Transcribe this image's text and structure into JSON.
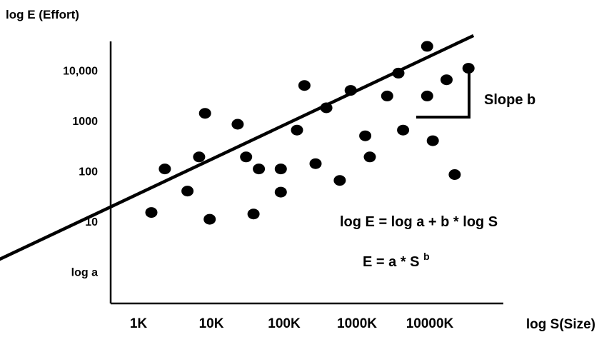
{
  "chart_data": {
    "type": "scatter",
    "y_axis_title": "log E (Effort)",
    "x_axis_title": "log S(Size)",
    "y_ticks": [
      {
        "label": "log a",
        "exp": 0.0
      },
      {
        "label": "10",
        "exp": 1
      },
      {
        "label": "100",
        "exp": 2
      },
      {
        "label": "1000",
        "exp": 3
      },
      {
        "label": "10,000",
        "exp": 4
      }
    ],
    "x_ticks": [
      {
        "label": "1K",
        "exp": 3
      },
      {
        "label": "10K",
        "exp": 4
      },
      {
        "label": "100K",
        "exp": 5
      },
      {
        "label": "1000K",
        "exp": 6
      },
      {
        "label": "10000K",
        "exp": 7
      }
    ],
    "points": [
      [
        1500,
        15
      ],
      [
        2300,
        110
      ],
      [
        4700,
        40
      ],
      [
        6800,
        190
      ],
      [
        8200,
        1400
      ],
      [
        9500,
        11
      ],
      [
        23000,
        850
      ],
      [
        30000,
        190
      ],
      [
        38000,
        14
      ],
      [
        45000,
        110
      ],
      [
        90000,
        110
      ],
      [
        90000,
        38
      ],
      [
        150000,
        650
      ],
      [
        190000,
        5000
      ],
      [
        270000,
        140
      ],
      [
        380000,
        1800
      ],
      [
        580000,
        65
      ],
      [
        820000,
        4000
      ],
      [
        1300000,
        500
      ],
      [
        1500000,
        190
      ],
      [
        2600000,
        3100
      ],
      [
        3700000,
        8800
      ],
      [
        4300000,
        650
      ],
      [
        9200000,
        30000
      ],
      [
        9200000,
        3100
      ],
      [
        11000000,
        400
      ],
      [
        17000000,
        6500
      ],
      [
        22000000,
        85
      ],
      [
        34000000,
        11000
      ]
    ],
    "trend_line": {
      "x_exp": [
        0.85,
        7.6
      ],
      "y_exp": [
        0.08,
        4.69
      ]
    },
    "slope_marker_label": "Slope b",
    "annotations": {
      "equation_log": "log E = log a + b * log S",
      "equation_power_base": "E = a * S ",
      "equation_power_exp": "b"
    },
    "grid": false
  }
}
